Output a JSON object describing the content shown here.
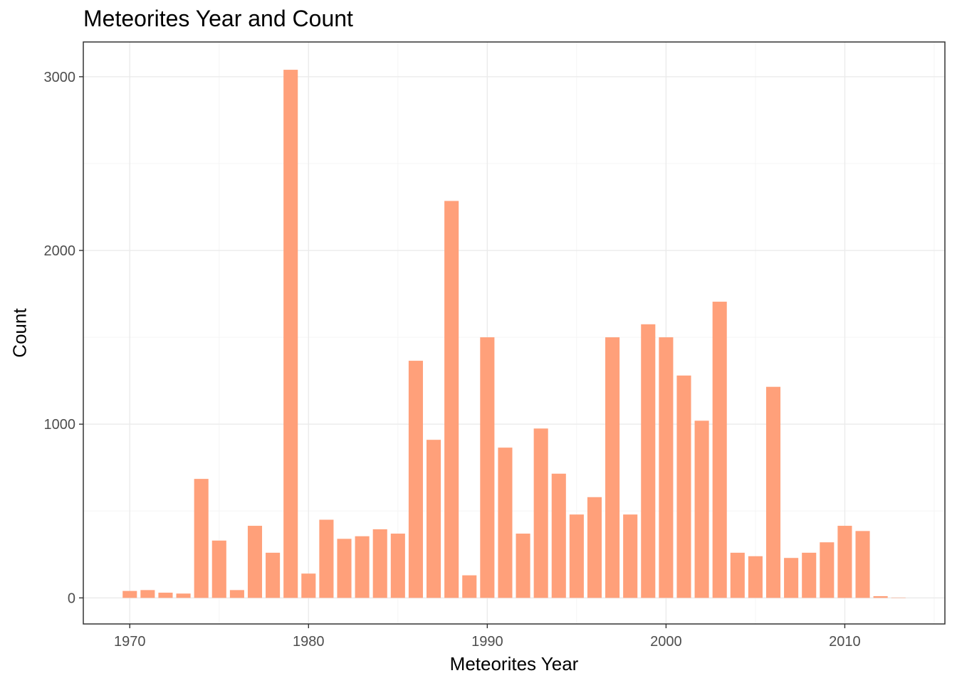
{
  "chart_data": {
    "type": "bar",
    "title": "Meteorites Year and Count",
    "xlabel": "Meteorites Year",
    "ylabel": "Count",
    "x_ticks": [
      1970,
      1980,
      1990,
      2000,
      2010
    ],
    "y_ticks": [
      0,
      1000,
      2000,
      3000
    ],
    "xlim": [
      1967.4,
      2015.6
    ],
    "ylim": [
      -150,
      3200
    ],
    "bar_color": "#FFA07A",
    "grid": true,
    "legend": "none",
    "categories": [
      1970,
      1971,
      1972,
      1973,
      1974,
      1975,
      1976,
      1977,
      1978,
      1979,
      1980,
      1981,
      1982,
      1983,
      1984,
      1985,
      1986,
      1987,
      1988,
      1989,
      1990,
      1991,
      1992,
      1993,
      1994,
      1995,
      1996,
      1997,
      1998,
      1999,
      2000,
      2001,
      2002,
      2003,
      2004,
      2005,
      2006,
      2007,
      2008,
      2009,
      2010,
      2011,
      2012,
      2013
    ],
    "values": [
      40,
      45,
      30,
      25,
      685,
      330,
      45,
      415,
      260,
      3040,
      140,
      450,
      340,
      355,
      395,
      370,
      1365,
      910,
      2285,
      130,
      1500,
      865,
      370,
      975,
      715,
      480,
      580,
      1500,
      480,
      1575,
      1500,
      1280,
      1020,
      1705,
      260,
      240,
      1215,
      230,
      260,
      320,
      415,
      385,
      10,
      2
    ]
  }
}
